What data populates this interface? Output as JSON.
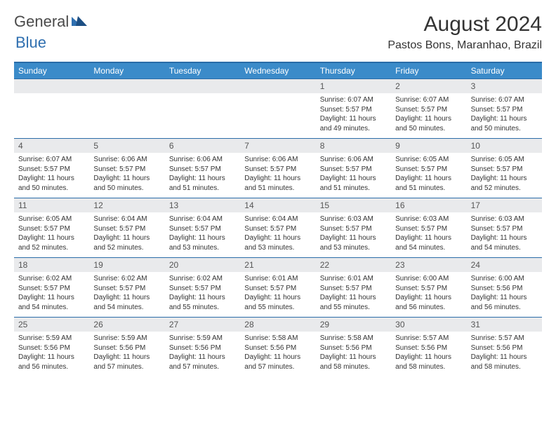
{
  "logo": {
    "general": "General",
    "blue": "Blue"
  },
  "title": "August 2024",
  "location": "Pastos Bons, Maranhao, Brazil",
  "colors": {
    "header_bg": "#3b8bc9",
    "border": "#2a6ca8",
    "daynum_bg": "#e9eaec",
    "text": "#333333",
    "logo_blue": "#2f6fb0"
  },
  "day_names": [
    "Sunday",
    "Monday",
    "Tuesday",
    "Wednesday",
    "Thursday",
    "Friday",
    "Saturday"
  ],
  "weeks": [
    [
      {
        "day": "",
        "sunrise": "",
        "sunset": "",
        "daylight": ""
      },
      {
        "day": "",
        "sunrise": "",
        "sunset": "",
        "daylight": ""
      },
      {
        "day": "",
        "sunrise": "",
        "sunset": "",
        "daylight": ""
      },
      {
        "day": "",
        "sunrise": "",
        "sunset": "",
        "daylight": ""
      },
      {
        "day": "1",
        "sunrise": "Sunrise: 6:07 AM",
        "sunset": "Sunset: 5:57 PM",
        "daylight": "Daylight: 11 hours and 49 minutes."
      },
      {
        "day": "2",
        "sunrise": "Sunrise: 6:07 AM",
        "sunset": "Sunset: 5:57 PM",
        "daylight": "Daylight: 11 hours and 50 minutes."
      },
      {
        "day": "3",
        "sunrise": "Sunrise: 6:07 AM",
        "sunset": "Sunset: 5:57 PM",
        "daylight": "Daylight: 11 hours and 50 minutes."
      }
    ],
    [
      {
        "day": "4",
        "sunrise": "Sunrise: 6:07 AM",
        "sunset": "Sunset: 5:57 PM",
        "daylight": "Daylight: 11 hours and 50 minutes."
      },
      {
        "day": "5",
        "sunrise": "Sunrise: 6:06 AM",
        "sunset": "Sunset: 5:57 PM",
        "daylight": "Daylight: 11 hours and 50 minutes."
      },
      {
        "day": "6",
        "sunrise": "Sunrise: 6:06 AM",
        "sunset": "Sunset: 5:57 PM",
        "daylight": "Daylight: 11 hours and 51 minutes."
      },
      {
        "day": "7",
        "sunrise": "Sunrise: 6:06 AM",
        "sunset": "Sunset: 5:57 PM",
        "daylight": "Daylight: 11 hours and 51 minutes."
      },
      {
        "day": "8",
        "sunrise": "Sunrise: 6:06 AM",
        "sunset": "Sunset: 5:57 PM",
        "daylight": "Daylight: 11 hours and 51 minutes."
      },
      {
        "day": "9",
        "sunrise": "Sunrise: 6:05 AM",
        "sunset": "Sunset: 5:57 PM",
        "daylight": "Daylight: 11 hours and 51 minutes."
      },
      {
        "day": "10",
        "sunrise": "Sunrise: 6:05 AM",
        "sunset": "Sunset: 5:57 PM",
        "daylight": "Daylight: 11 hours and 52 minutes."
      }
    ],
    [
      {
        "day": "11",
        "sunrise": "Sunrise: 6:05 AM",
        "sunset": "Sunset: 5:57 PM",
        "daylight": "Daylight: 11 hours and 52 minutes."
      },
      {
        "day": "12",
        "sunrise": "Sunrise: 6:04 AM",
        "sunset": "Sunset: 5:57 PM",
        "daylight": "Daylight: 11 hours and 52 minutes."
      },
      {
        "day": "13",
        "sunrise": "Sunrise: 6:04 AM",
        "sunset": "Sunset: 5:57 PM",
        "daylight": "Daylight: 11 hours and 53 minutes."
      },
      {
        "day": "14",
        "sunrise": "Sunrise: 6:04 AM",
        "sunset": "Sunset: 5:57 PM",
        "daylight": "Daylight: 11 hours and 53 minutes."
      },
      {
        "day": "15",
        "sunrise": "Sunrise: 6:03 AM",
        "sunset": "Sunset: 5:57 PM",
        "daylight": "Daylight: 11 hours and 53 minutes."
      },
      {
        "day": "16",
        "sunrise": "Sunrise: 6:03 AM",
        "sunset": "Sunset: 5:57 PM",
        "daylight": "Daylight: 11 hours and 54 minutes."
      },
      {
        "day": "17",
        "sunrise": "Sunrise: 6:03 AM",
        "sunset": "Sunset: 5:57 PM",
        "daylight": "Daylight: 11 hours and 54 minutes."
      }
    ],
    [
      {
        "day": "18",
        "sunrise": "Sunrise: 6:02 AM",
        "sunset": "Sunset: 5:57 PM",
        "daylight": "Daylight: 11 hours and 54 minutes."
      },
      {
        "day": "19",
        "sunrise": "Sunrise: 6:02 AM",
        "sunset": "Sunset: 5:57 PM",
        "daylight": "Daylight: 11 hours and 54 minutes."
      },
      {
        "day": "20",
        "sunrise": "Sunrise: 6:02 AM",
        "sunset": "Sunset: 5:57 PM",
        "daylight": "Daylight: 11 hours and 55 minutes."
      },
      {
        "day": "21",
        "sunrise": "Sunrise: 6:01 AM",
        "sunset": "Sunset: 5:57 PM",
        "daylight": "Daylight: 11 hours and 55 minutes."
      },
      {
        "day": "22",
        "sunrise": "Sunrise: 6:01 AM",
        "sunset": "Sunset: 5:57 PM",
        "daylight": "Daylight: 11 hours and 55 minutes."
      },
      {
        "day": "23",
        "sunrise": "Sunrise: 6:00 AM",
        "sunset": "Sunset: 5:57 PM",
        "daylight": "Daylight: 11 hours and 56 minutes."
      },
      {
        "day": "24",
        "sunrise": "Sunrise: 6:00 AM",
        "sunset": "Sunset: 5:56 PM",
        "daylight": "Daylight: 11 hours and 56 minutes."
      }
    ],
    [
      {
        "day": "25",
        "sunrise": "Sunrise: 5:59 AM",
        "sunset": "Sunset: 5:56 PM",
        "daylight": "Daylight: 11 hours and 56 minutes."
      },
      {
        "day": "26",
        "sunrise": "Sunrise: 5:59 AM",
        "sunset": "Sunset: 5:56 PM",
        "daylight": "Daylight: 11 hours and 57 minutes."
      },
      {
        "day": "27",
        "sunrise": "Sunrise: 5:59 AM",
        "sunset": "Sunset: 5:56 PM",
        "daylight": "Daylight: 11 hours and 57 minutes."
      },
      {
        "day": "28",
        "sunrise": "Sunrise: 5:58 AM",
        "sunset": "Sunset: 5:56 PM",
        "daylight": "Daylight: 11 hours and 57 minutes."
      },
      {
        "day": "29",
        "sunrise": "Sunrise: 5:58 AM",
        "sunset": "Sunset: 5:56 PM",
        "daylight": "Daylight: 11 hours and 58 minutes."
      },
      {
        "day": "30",
        "sunrise": "Sunrise: 5:57 AM",
        "sunset": "Sunset: 5:56 PM",
        "daylight": "Daylight: 11 hours and 58 minutes."
      },
      {
        "day": "31",
        "sunrise": "Sunrise: 5:57 AM",
        "sunset": "Sunset: 5:56 PM",
        "daylight": "Daylight: 11 hours and 58 minutes."
      }
    ]
  ]
}
